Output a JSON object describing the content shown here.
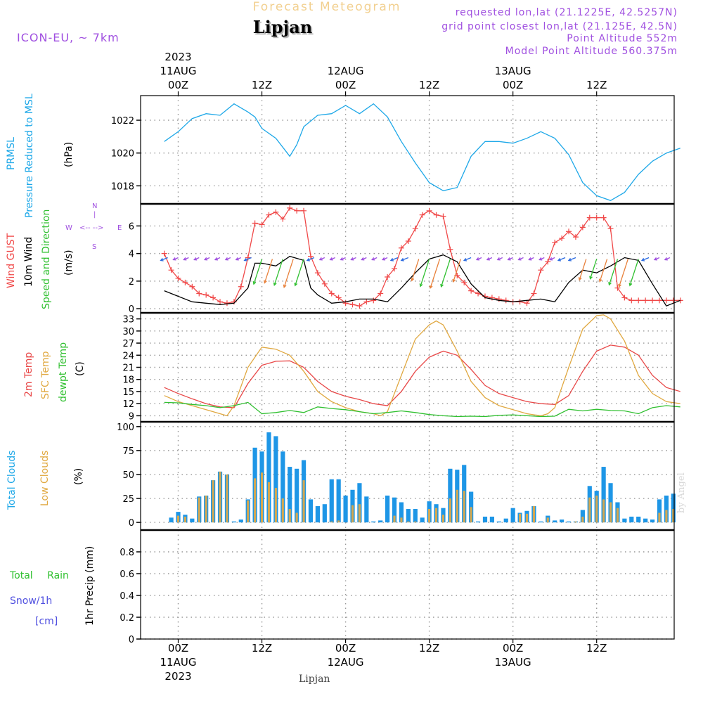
{
  "header": {
    "title": "Forecast Meteogram",
    "location": "Lipjan",
    "model": "ICON-EU, ~ 7km",
    "info_lines": [
      "requested lon,lat (21.1225E, 42.5257N)",
      "grid point closest lon,lat (21.125E, 42.5N)",
      "Point Altitude 552m",
      "Model Point Altitude 560.375m"
    ]
  },
  "time_axis": {
    "top_ticks": [
      {
        "lines": [
          "2023",
          "11AUG",
          "00Z"
        ],
        "hour": 0
      },
      {
        "lines": [
          "12Z"
        ],
        "hour": 12
      },
      {
        "lines": [
          "12AUG",
          "00Z"
        ],
        "hour": 24
      },
      {
        "lines": [
          "12Z"
        ],
        "hour": 36
      },
      {
        "lines": [
          "13AUG",
          "00Z"
        ],
        "hour": 48
      },
      {
        "lines": [
          "12Z"
        ],
        "hour": 60
      }
    ],
    "bottom_ticks": [
      {
        "lines": [
          "00Z",
          "11AUG",
          "2023"
        ],
        "hour": 0
      },
      {
        "lines": [
          "12Z"
        ],
        "hour": 12
      },
      {
        "lines": [
          "00Z",
          "12AUG"
        ],
        "hour": 24
      },
      {
        "lines": [
          "12Z"
        ],
        "hour": 36
      },
      {
        "lines": [
          "00Z",
          "13AUG"
        ],
        "hour": 48
      },
      {
        "lines": [
          "12Z"
        ],
        "hour": 60
      }
    ]
  },
  "labels": {
    "pressure": {
      "name1": "PRMSL",
      "name2": "Pressure Reduced to MSL",
      "unit": "(hPa)"
    },
    "wind": {
      "gust": "Wind GUST",
      "wind10": "10m Wind",
      "speed": "Speed and Direction",
      "unit": "(m/s)",
      "compass": {
        "n": "N",
        "s": "S",
        "w": "W",
        "e": "E",
        "ns_bar": "|",
        "we_bar": "<-- -->"
      }
    },
    "temp": {
      "t2m": "2m Temp",
      "sfc": "SFC Temp",
      "dew": "dewpt Temp",
      "unit": "(C)"
    },
    "clouds": {
      "total": "Total Clouds",
      "low": "Low Clouds",
      "unit": "(%)"
    },
    "precip": {
      "rain": "Total Rain",
      "snow": "Snow/1h",
      "snow_unit": "[cm]",
      "axis": "1hr Precip (mm)"
    }
  },
  "footer": "Lipjan",
  "credit": "by Angel",
  "colors": {
    "pressure": "#1ea8e8",
    "gust": "#f04848",
    "wind": "#000000",
    "t2m": "#e84848",
    "sfc": "#e0a840",
    "dew": "#30c030",
    "total_cloud": "#1e96e6",
    "low_cloud": "#d4a850",
    "purple": "#a050e0",
    "green_label": "#30c030",
    "blue_label": "#5050e0"
  },
  "chart_data": [
    {
      "type": "line",
      "title": "",
      "ylabel": "(hPa)",
      "ylim": [
        1016.9,
        1023.5
      ],
      "yticks": [
        1018,
        1020,
        1022
      ],
      "series": [
        {
          "name": "PRMSL",
          "x": [
            -2,
            0,
            2,
            4,
            6,
            8,
            10,
            11,
            12,
            14,
            16,
            17,
            18,
            20,
            22,
            24,
            26,
            28,
            30,
            32,
            34,
            36,
            38,
            40,
            42,
            44,
            46,
            48,
            50,
            52,
            54,
            56,
            58,
            60,
            62,
            64,
            66,
            68,
            70,
            72
          ],
          "values": [
            1020.7,
            1021.3,
            1022.1,
            1022.4,
            1022.3,
            1023.0,
            1022.5,
            1022.2,
            1021.5,
            1020.9,
            1019.8,
            1020.5,
            1021.6,
            1022.3,
            1022.4,
            1022.9,
            1022.4,
            1023.0,
            1022.2,
            1020.7,
            1019.4,
            1018.2,
            1017.7,
            1017.9,
            1019.8,
            1020.7,
            1020.7,
            1020.6,
            1020.9,
            1021.3,
            1020.9,
            1019.9,
            1018.2,
            1017.4,
            1017.1,
            1017.6,
            1018.7,
            1019.5,
            1020.0,
            1020.3
          ]
        }
      ]
    },
    {
      "type": "line",
      "title": "",
      "ylabel": "(m/s)",
      "ylim": [
        -0.3,
        7.6
      ],
      "yticks": [
        0,
        2,
        4,
        6
      ],
      "series": [
        {
          "name": "Wind GUST",
          "x": [
            -2,
            -1,
            0,
            1,
            2,
            3,
            4,
            5,
            6,
            7,
            8,
            9,
            10,
            11,
            12,
            13,
            14,
            15,
            16,
            17,
            18,
            19,
            20,
            21,
            22,
            23,
            24,
            25,
            26,
            27,
            28,
            29,
            30,
            31,
            32,
            33,
            34,
            35,
            36,
            37,
            38,
            39,
            40,
            41,
            42,
            43,
            44,
            45,
            46,
            47,
            48,
            49,
            50,
            51,
            52,
            53,
            54,
            55,
            56,
            57,
            58,
            59,
            60,
            61,
            62,
            63,
            64,
            65,
            66,
            67,
            68,
            69,
            70,
            71,
            72
          ],
          "values": [
            4.0,
            2.8,
            2.2,
            1.9,
            1.6,
            1.1,
            1.0,
            0.8,
            0.5,
            0.4,
            0.5,
            1.6,
            3.7,
            6.2,
            6.1,
            6.8,
            7.0,
            6.5,
            7.3,
            7.1,
            7.1,
            3.8,
            2.6,
            1.8,
            1.1,
            0.8,
            0.4,
            0.3,
            0.2,
            0.5,
            0.6,
            1.1,
            2.3,
            2.9,
            4.4,
            4.9,
            5.8,
            6.8,
            7.1,
            6.8,
            6.7,
            4.3,
            2.4,
            1.9,
            1.3,
            1.1,
            0.9,
            0.8,
            0.7,
            0.6,
            0.5,
            0.5,
            0.4,
            1.1,
            2.8,
            3.4,
            4.8,
            5.1,
            5.6,
            5.2,
            5.9,
            6.6,
            6.6,
            6.6,
            5.8,
            1.5,
            0.8,
            0.6,
            0.6,
            0.6,
            0.6,
            0.6,
            0.6,
            0.6,
            0.6
          ]
        },
        {
          "name": "10m Wind",
          "x": [
            -2,
            0,
            2,
            4,
            6,
            8,
            10,
            11,
            12,
            14,
            16,
            18,
            19,
            20,
            22,
            24,
            26,
            28,
            30,
            32,
            34,
            36,
            38,
            40,
            42,
            44,
            46,
            48,
            50,
            52,
            54,
            56,
            58,
            60,
            62,
            64,
            66,
            68,
            70,
            72
          ],
          "values": [
            1.3,
            0.9,
            0.5,
            0.4,
            0.3,
            0.4,
            1.5,
            3.3,
            3.3,
            3.1,
            3.8,
            3.5,
            1.5,
            1.0,
            0.4,
            0.5,
            0.7,
            0.7,
            0.5,
            1.5,
            2.6,
            3.6,
            3.9,
            3.4,
            1.8,
            0.8,
            0.6,
            0.5,
            0.6,
            0.7,
            0.5,
            1.9,
            2.8,
            2.6,
            3.1,
            3.7,
            3.5,
            1.8,
            0.2,
            0.6
          ]
        }
      ]
    },
    {
      "type": "line",
      "title": "",
      "ylabel": "(C)",
      "ylim": [
        7.5,
        34.5
      ],
      "yticks": [
        9,
        12,
        15,
        18,
        21,
        24,
        27,
        30,
        33
      ],
      "series": [
        {
          "name": "2m Temp",
          "x": [
            -2,
            0,
            2,
            4,
            6,
            8,
            10,
            12,
            14,
            16,
            18,
            20,
            22,
            24,
            26,
            28,
            30,
            32,
            34,
            36,
            38,
            40,
            42,
            44,
            46,
            48,
            50,
            52,
            54,
            56,
            58,
            60,
            62,
            64,
            66,
            68,
            70,
            72
          ],
          "values": [
            16.0,
            14.5,
            13.2,
            12.0,
            11.2,
            11.0,
            17.0,
            21.5,
            22.5,
            22.6,
            21.0,
            17.5,
            15.0,
            13.8,
            13.0,
            12.0,
            11.5,
            15.0,
            20.0,
            23.5,
            25.0,
            24.0,
            20.5,
            16.5,
            14.5,
            13.5,
            12.5,
            12.0,
            11.8,
            14.0,
            20.0,
            25.0,
            26.5,
            26.0,
            24.0,
            19.0,
            16.0,
            15.0
          ]
        },
        {
          "name": "SFC Temp",
          "x": [
            -2,
            0,
            2,
            4,
            6,
            7,
            8,
            10,
            12,
            14,
            16,
            18,
            20,
            22,
            24,
            26,
            28,
            29,
            30,
            32,
            34,
            36,
            37,
            38,
            40,
            42,
            44,
            46,
            48,
            50,
            52,
            53,
            54,
            56,
            58,
            60,
            61,
            62,
            64,
            66,
            68,
            70,
            72
          ],
          "values": [
            14.0,
            12.5,
            11.5,
            10.5,
            9.5,
            9.0,
            11.5,
            21.0,
            26.0,
            25.5,
            24.0,
            20.0,
            15.0,
            12.5,
            11.0,
            10.0,
            9.5,
            9.0,
            10.0,
            19.0,
            28.0,
            31.5,
            32.5,
            31.5,
            25.0,
            17.5,
            13.5,
            11.5,
            10.5,
            9.5,
            9.0,
            9.5,
            11.0,
            21.0,
            30.5,
            33.8,
            34.0,
            33.0,
            27.5,
            19.0,
            14.5,
            12.5,
            12.0
          ]
        },
        {
          "name": "dewpt Temp",
          "x": [
            -2,
            0,
            2,
            4,
            6,
            8,
            10,
            12,
            14,
            16,
            18,
            20,
            22,
            24,
            26,
            28,
            30,
            32,
            34,
            36,
            38,
            40,
            42,
            44,
            46,
            48,
            50,
            52,
            54,
            56,
            58,
            60,
            62,
            64,
            66,
            68,
            70,
            72
          ],
          "values": [
            12.3,
            12.2,
            11.8,
            11.5,
            11.0,
            11.5,
            12.3,
            9.5,
            9.8,
            10.3,
            9.8,
            11.2,
            10.8,
            10.5,
            10.0,
            9.5,
            9.8,
            10.2,
            9.8,
            9.3,
            9.0,
            8.8,
            8.9,
            8.8,
            9.1,
            9.2,
            9.0,
            8.8,
            8.9,
            10.6,
            10.2,
            10.6,
            10.3,
            10.2,
            9.5,
            11.0,
            11.5,
            11.2
          ]
        }
      ]
    },
    {
      "type": "bar",
      "title": "",
      "ylabel": "(%)",
      "ylim": [
        -8,
        105
      ],
      "yticks": [
        0,
        25,
        50,
        75,
        100
      ],
      "x": [
        -1,
        0,
        1,
        2,
        3,
        4,
        5,
        6,
        7,
        8,
        9,
        10,
        11,
        12,
        13,
        14,
        15,
        16,
        17,
        18,
        19,
        20,
        21,
        22,
        23,
        24,
        25,
        26,
        27,
        28,
        29,
        30,
        31,
        32,
        33,
        34,
        35,
        36,
        37,
        38,
        39,
        40,
        41,
        42,
        43,
        44,
        45,
        46,
        47,
        48,
        49,
        50,
        51,
        52,
        53,
        54,
        55,
        56,
        57,
        58,
        59,
        60,
        61,
        62,
        63,
        64,
        65,
        66,
        67,
        68,
        69,
        70,
        71,
        72
      ],
      "series": [
        {
          "name": "Total Clouds",
          "values": [
            5,
            11,
            8,
            4,
            27,
            28,
            44,
            53,
            50,
            1,
            3,
            24,
            78,
            74,
            94,
            90,
            74,
            58,
            56,
            65,
            24,
            17,
            19,
            45,
            45,
            28,
            34,
            41,
            27,
            1,
            2,
            28,
            26,
            21,
            14,
            14,
            5,
            22,
            19,
            15,
            56,
            55,
            60,
            32,
            1,
            6,
            6,
            1,
            4,
            15,
            10,
            12,
            17,
            1,
            7,
            2,
            3,
            1,
            1,
            13,
            38,
            33,
            58,
            41,
            21,
            4,
            6,
            6,
            4,
            3,
            24,
            28,
            30,
            0
          ]
        },
        {
          "name": "Low Clouds",
          "values": [
            0,
            7,
            6,
            0,
            26,
            28,
            44,
            53,
            50,
            0,
            0,
            23,
            46,
            52,
            42,
            36,
            25,
            14,
            10,
            44,
            0,
            0,
            0,
            1,
            2,
            0,
            18,
            19,
            0,
            0,
            0,
            0,
            7,
            5,
            1,
            1,
            0,
            14,
            15,
            8,
            25,
            34,
            33,
            16,
            0,
            0,
            0,
            0,
            0,
            0,
            9,
            9,
            17,
            0,
            5,
            0,
            0,
            0,
            1,
            6,
            26,
            28,
            24,
            21,
            15,
            0,
            0,
            0,
            0,
            0,
            10,
            13,
            14,
            0
          ]
        }
      ]
    },
    {
      "type": "bar",
      "title": "",
      "ylabel": "1hr Precip (mm)",
      "ylim": [
        0,
        1.0
      ],
      "yticks": [
        0,
        0.2,
        0.4,
        0.6,
        0.8
      ],
      "series": [
        {
          "name": "Total Rain",
          "values": []
        }
      ]
    }
  ]
}
